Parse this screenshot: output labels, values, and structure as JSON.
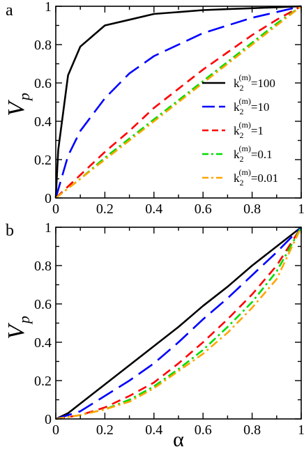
{
  "chart_data": [
    {
      "panel_label": "a",
      "type": "line",
      "xlabel": "",
      "ylabel": "V",
      "ylabel_subscript": "p",
      "xlim": [
        0,
        1
      ],
      "ylim": [
        0,
        1
      ],
      "xticks": [
        "0",
        "0.2",
        "0.4",
        "0.6",
        "0.8",
        "1"
      ],
      "yticks": [
        "0",
        "0.2",
        "0.4",
        "0.6",
        "0.8",
        "1"
      ],
      "grid": false,
      "legend_placement": "middle-right",
      "series": [
        {
          "name": "100",
          "color": "#000000",
          "dash": "solid",
          "points": [
            [
              0,
              0
            ],
            [
              0.01,
              0.25
            ],
            [
              0.05,
              0.64
            ],
            [
              0.1,
              0.79
            ],
            [
              0.2,
              0.9
            ],
            [
              0.3,
              0.93
            ],
            [
              0.4,
              0.96
            ],
            [
              0.5,
              0.97
            ],
            [
              0.6,
              0.98
            ],
            [
              0.7,
              0.985
            ],
            [
              0.8,
              0.99
            ],
            [
              0.9,
              0.995
            ],
            [
              1,
              1
            ]
          ]
        },
        {
          "name": "10",
          "color": "#0000ff",
          "dash": "long",
          "points": [
            [
              0,
              0
            ],
            [
              0.05,
              0.22
            ],
            [
              0.1,
              0.35
            ],
            [
              0.2,
              0.52
            ],
            [
              0.3,
              0.65
            ],
            [
              0.4,
              0.74
            ],
            [
              0.5,
              0.8
            ],
            [
              0.6,
              0.86
            ],
            [
              0.7,
              0.9
            ],
            [
              0.8,
              0.94
            ],
            [
              0.9,
              0.97
            ],
            [
              1,
              1
            ]
          ]
        },
        {
          "name": "1",
          "color": "#ff0000",
          "dash": "medium",
          "points": [
            [
              0,
              0
            ],
            [
              0.05,
              0.06
            ],
            [
              0.1,
              0.12
            ],
            [
              0.2,
              0.24
            ],
            [
              0.3,
              0.35
            ],
            [
              0.4,
              0.47
            ],
            [
              0.5,
              0.57
            ],
            [
              0.6,
              0.67
            ],
            [
              0.7,
              0.76
            ],
            [
              0.8,
              0.85
            ],
            [
              0.9,
              0.93
            ],
            [
              1,
              1
            ]
          ]
        },
        {
          "name": "0.1",
          "color": "#00dd00",
          "dash": "dashdot",
          "points": [
            [
              0,
              0
            ],
            [
              0.05,
              0.05
            ],
            [
              0.1,
              0.1
            ],
            [
              0.2,
              0.21
            ],
            [
              0.3,
              0.31
            ],
            [
              0.4,
              0.41
            ],
            [
              0.5,
              0.51
            ],
            [
              0.6,
              0.61
            ],
            [
              0.7,
              0.71
            ],
            [
              0.8,
              0.81
            ],
            [
              0.9,
              0.91
            ],
            [
              1,
              1
            ]
          ]
        },
        {
          "name": "0.01",
          "color": "#ffa500",
          "dash": "dashdot",
          "points": [
            [
              0,
              0
            ],
            [
              0.05,
              0.05
            ],
            [
              0.1,
              0.1
            ],
            [
              0.2,
              0.2
            ],
            [
              0.3,
              0.3
            ],
            [
              0.4,
              0.4
            ],
            [
              0.5,
              0.5
            ],
            [
              0.6,
              0.6
            ],
            [
              0.7,
              0.7
            ],
            [
              0.8,
              0.8
            ],
            [
              0.9,
              0.9
            ],
            [
              1,
              1
            ]
          ]
        }
      ],
      "legend": {
        "prefix": "k",
        "sub": "2",
        "sup": "(m)"
      }
    },
    {
      "panel_label": "b",
      "type": "line",
      "xlabel": "α",
      "ylabel": "V",
      "ylabel_subscript": "p",
      "xlim": [
        0,
        1
      ],
      "ylim": [
        0,
        1
      ],
      "xticks": [
        "0",
        "0.2",
        "0.4",
        "0.6",
        "0.8",
        "1"
      ],
      "yticks": [
        "0",
        "0.2",
        "0.4",
        "0.6",
        "0.8",
        "1"
      ],
      "grid": false,
      "series": [
        {
          "name": "100",
          "color": "#000000",
          "dash": "solid",
          "points": [
            [
              0,
              0
            ],
            [
              0.05,
              0.03
            ],
            [
              0.1,
              0.08
            ],
            [
              0.2,
              0.18
            ],
            [
              0.3,
              0.28
            ],
            [
              0.4,
              0.38
            ],
            [
              0.5,
              0.48
            ],
            [
              0.6,
              0.59
            ],
            [
              0.7,
              0.69
            ],
            [
              0.8,
              0.8
            ],
            [
              0.9,
              0.9
            ],
            [
              1,
              1
            ]
          ]
        },
        {
          "name": "10",
          "color": "#0000ff",
          "dash": "long",
          "points": [
            [
              0,
              0
            ],
            [
              0.1,
              0.04
            ],
            [
              0.2,
              0.12
            ],
            [
              0.3,
              0.2
            ],
            [
              0.4,
              0.29
            ],
            [
              0.5,
              0.4
            ],
            [
              0.6,
              0.52
            ],
            [
              0.7,
              0.63
            ],
            [
              0.8,
              0.75
            ],
            [
              0.9,
              0.87
            ],
            [
              1,
              1
            ]
          ]
        },
        {
          "name": "1",
          "color": "#ff0000",
          "dash": "medium",
          "points": [
            [
              0,
              0
            ],
            [
              0.1,
              0.02
            ],
            [
              0.2,
              0.06
            ],
            [
              0.3,
              0.12
            ],
            [
              0.4,
              0.19
            ],
            [
              0.5,
              0.29
            ],
            [
              0.6,
              0.4
            ],
            [
              0.7,
              0.52
            ],
            [
              0.8,
              0.65
            ],
            [
              0.9,
              0.8
            ],
            [
              1,
              1
            ]
          ]
        },
        {
          "name": "0.1",
          "color": "#00dd00",
          "dash": "dashdot",
          "points": [
            [
              0,
              0
            ],
            [
              0.1,
              0.02
            ],
            [
              0.2,
              0.05
            ],
            [
              0.3,
              0.1
            ],
            [
              0.4,
              0.17
            ],
            [
              0.5,
              0.26
            ],
            [
              0.6,
              0.36
            ],
            [
              0.7,
              0.48
            ],
            [
              0.8,
              0.61
            ],
            [
              0.9,
              0.77
            ],
            [
              1,
              1
            ]
          ]
        },
        {
          "name": "0.01",
          "color": "#ffa500",
          "dash": "dashdot",
          "points": [
            [
              0,
              0
            ],
            [
              0.1,
              0.02
            ],
            [
              0.2,
              0.05
            ],
            [
              0.3,
              0.09
            ],
            [
              0.4,
              0.16
            ],
            [
              0.5,
              0.25
            ],
            [
              0.6,
              0.34
            ],
            [
              0.7,
              0.45
            ],
            [
              0.8,
              0.58
            ],
            [
              0.9,
              0.73
            ],
            [
              1,
              1
            ]
          ]
        }
      ]
    }
  ]
}
